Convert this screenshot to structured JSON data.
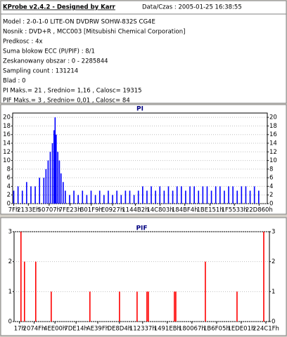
{
  "header": {
    "title": "KProbe v2.4.2 - Designed by Karr",
    "datetime": "Data/Czas : 2005-01-25 16:38:55"
  },
  "info": [
    "Model : 2-0-1-0 LITE-ON DVDRW SOHW-832S  CG4E",
    "Nosnik : DVD+R , MCC003 [Mitsubishi Chemical Corporation]",
    "Predkosc : 4x",
    "Suma blokow ECC (PI/PIF) : 8/1",
    "Zeskanowany obszar : 0 - 2285844",
    "Sampling count : 131214",
    "Blad : 0",
    "PI Maks.= 21 , Srednio= 1,16 , Calosc= 19315",
    "PIF Maks.= 3 , Srednio= 0,01 , Calosc= 84"
  ],
  "chart_data": [
    {
      "type": "bar",
      "title": "PI",
      "color": "#0000ff",
      "grid": true,
      "x": [
        0,
        40000,
        80000,
        120000,
        160000,
        200000,
        240000,
        280000,
        300000,
        320000,
        340000,
        360000,
        375000,
        385000,
        395000,
        410000,
        425000,
        440000,
        460000,
        480000,
        520000,
        560000,
        600000,
        640000,
        680000,
        720000,
        760000,
        800000,
        840000,
        880000,
        920000,
        960000,
        1000000,
        1040000,
        1080000,
        1120000,
        1160000,
        1200000,
        1240000,
        1280000,
        1320000,
        1360000,
        1400000,
        1440000,
        1480000,
        1520000,
        1560000,
        1600000,
        1640000,
        1680000,
        1720000,
        1760000,
        1800000,
        1840000,
        1880000,
        1920000,
        1960000,
        2000000,
        2040000,
        2080000,
        2120000,
        2160000,
        2200000,
        2240000,
        2280000
      ],
      "values": [
        3,
        4,
        3,
        5,
        4,
        4,
        6,
        6,
        8,
        10,
        12,
        14,
        17,
        20,
        16,
        12,
        10,
        7,
        5,
        3,
        2,
        3,
        2,
        3,
        2,
        3,
        2,
        3,
        2,
        3,
        2,
        3,
        2,
        3,
        3,
        2,
        3,
        4,
        3,
        4,
        3,
        4,
        3,
        4,
        3,
        4,
        4,
        3,
        4,
        4,
        3,
        4,
        4,
        3,
        4,
        4,
        3,
        4,
        4,
        3,
        4,
        4,
        3,
        4,
        3
      ],
      "xlim": [
        -10000,
        2360000
      ],
      "xticks": [
        {
          "value": 127,
          "label": "7Fh"
        },
        {
          "value": 135998,
          "label": "2133Eh"
        },
        {
          "value": 329479,
          "label": "50707h"
        },
        {
          "value": 523811,
          "label": "7FE23h"
        },
        {
          "value": 721401,
          "label": "B01F9h"
        },
        {
          "value": 919847,
          "label": "E0927h"
        },
        {
          "value": 1131698,
          "label": "1144B2h"
        },
        {
          "value": 1361923,
          "label": "14C803h"
        },
        {
          "value": 1592308,
          "label": "184BF4h"
        },
        {
          "value": 1827153,
          "label": "1BE151h"
        },
        {
          "value": 2053427,
          "label": "1F5533h"
        },
        {
          "value": 2283616,
          "label": "22D860h"
        }
      ],
      "ylim": [
        0,
        21
      ],
      "yticks": [
        0,
        2,
        4,
        6,
        8,
        10,
        12,
        14,
        16,
        18,
        20
      ]
    },
    {
      "type": "bar",
      "title": "PIF",
      "color": "#ff0000",
      "grid": true,
      "x": [
        12900,
        45000,
        147700,
        289000,
        642000,
        912000,
        1072500,
        1162400,
        1175200,
        1412900,
        1425700,
        1695400,
        1984400,
        2228400
      ],
      "values": [
        3,
        2,
        2,
        1,
        1,
        1,
        1,
        1,
        1,
        1,
        1,
        2,
        1,
        3
      ],
      "xlim": [
        -50000,
        2280000
      ],
      "xticks": [
        {
          "value": 23,
          "label": "17h"
        },
        {
          "value": 132943,
          "label": "2074Fh"
        },
        {
          "value": 323072,
          "label": "4EE00h"
        },
        {
          "value": 515604,
          "label": "7DE14h"
        },
        {
          "value": 713631,
          "label": "AE39Fh"
        },
        {
          "value": 911572,
          "label": "DE8D4h"
        },
        {
          "value": 1123127,
          "label": "112337h"
        },
        {
          "value": 1348075,
          "label": "1491EBh"
        },
        {
          "value": 1572967,
          "label": "180067h"
        },
        {
          "value": 1797893,
          "label": "1B6F05h"
        },
        {
          "value": 2022913,
          "label": "1EDE01h"
        },
        {
          "value": 2247711,
          "label": "224C1Fh"
        }
      ],
      "ylim": [
        0,
        3
      ],
      "yticks": [
        0,
        1,
        2,
        3
      ]
    }
  ]
}
